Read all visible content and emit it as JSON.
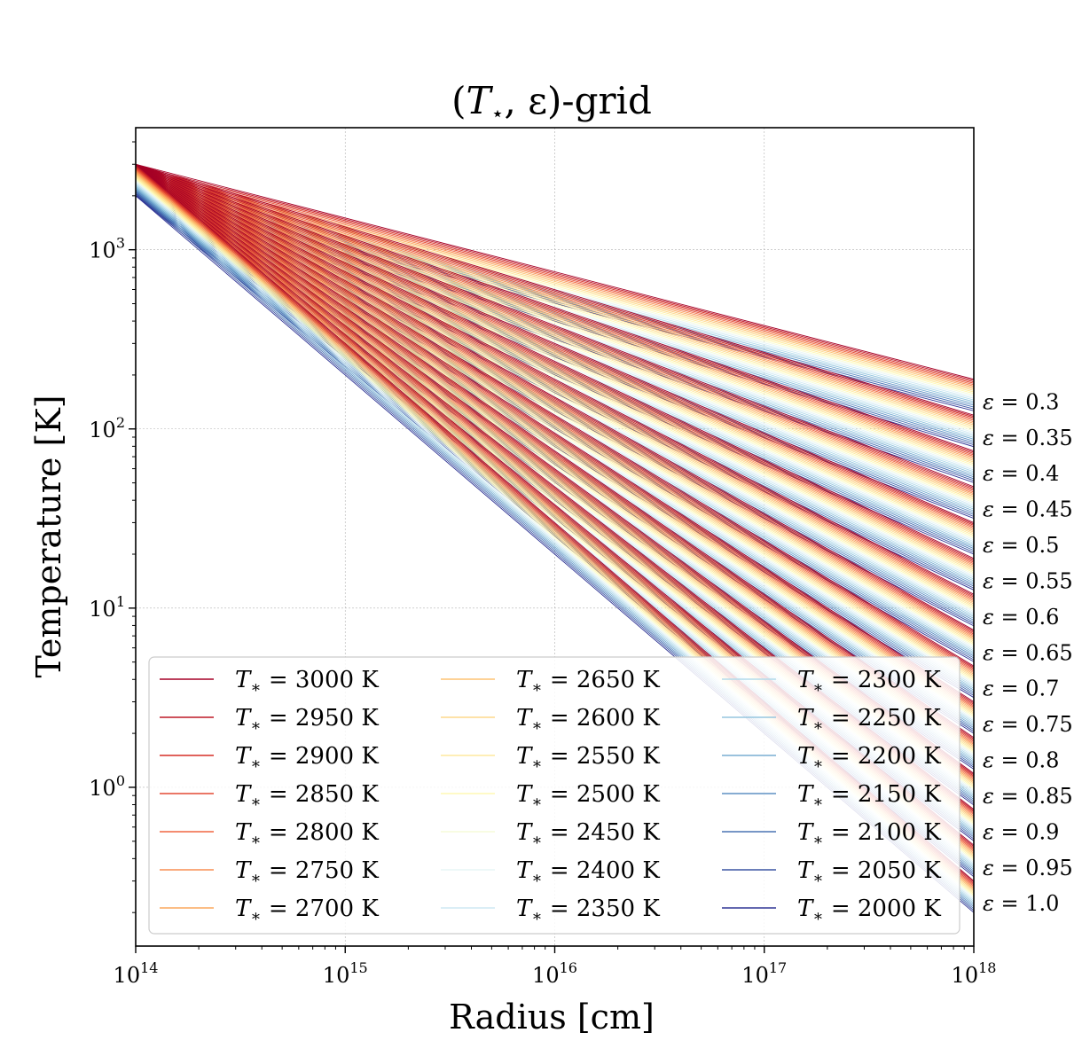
{
  "chart_data": {
    "type": "line",
    "title_parts": [
      "(",
      "T",
      "⋆",
      ", ε)-grid"
    ],
    "title": "(T⋆, ε)-grid",
    "xlabel": "Radius [cm]",
    "ylabel": "Temperature [K]",
    "xscale": "log",
    "yscale": "log",
    "xlim": [
      100000000000000.0,
      1e+18
    ],
    "ylim": [
      0.13,
      4800
    ],
    "grid": true,
    "x_tick_labels": [
      {
        "base": "10",
        "exp": "14",
        "value": 100000000000000.0
      },
      {
        "base": "10",
        "exp": "15",
        "value": 1000000000000000.0
      },
      {
        "base": "10",
        "exp": "16",
        "value": 1e+16
      },
      {
        "base": "10",
        "exp": "17",
        "value": 1e+17
      },
      {
        "base": "10",
        "exp": "18",
        "value": 1e+18
      }
    ],
    "y_tick_labels": [
      {
        "base": "10",
        "exp": "0",
        "value": 1
      },
      {
        "base": "10",
        "exp": "1",
        "value": 10
      },
      {
        "base": "10",
        "exp": "2",
        "value": 100
      },
      {
        "base": "10",
        "exp": "3",
        "value": 1000
      }
    ],
    "model": "T(r) = T* · (r / 1e14 cm)^(-ε)",
    "r0": 100000000000000.0,
    "tstar_series": [
      {
        "name": "T∗ = 3000 K",
        "value": 3000,
        "color": "#a50026"
      },
      {
        "name": "T∗ = 2950 K",
        "value": 2950,
        "color": "#be1827"
      },
      {
        "name": "T∗ = 2900 K",
        "value": 2900,
        "color": "#d62f27"
      },
      {
        "name": "T∗ = 2850 K",
        "value": 2850,
        "color": "#e34a33"
      },
      {
        "name": "T∗ = 2800 K",
        "value": 2800,
        "color": "#f16640"
      },
      {
        "name": "T∗ = 2750 K",
        "value": 2750,
        "color": "#f88d52"
      },
      {
        "name": "T∗ = 2700 K",
        "value": 2700,
        "color": "#fba95f"
      },
      {
        "name": "T∗ = 2650 K",
        "value": 2650,
        "color": "#fdc373"
      },
      {
        "name": "T∗ = 2600 K",
        "value": 2600,
        "color": "#fed98b"
      },
      {
        "name": "T∗ = 2550 K",
        "value": 2550,
        "color": "#fee99d"
      },
      {
        "name": "T∗ = 2500 K",
        "value": 2500,
        "color": "#fff8b4"
      },
      {
        "name": "T∗ = 2450 K",
        "value": 2450,
        "color": "#f6fbd9"
      },
      {
        "name": "T∗ = 2400 K",
        "value": 2400,
        "color": "#e7f5f5"
      },
      {
        "name": "T∗ = 2350 K",
        "value": 2350,
        "color": "#cfe9f3"
      },
      {
        "name": "T∗ = 2300 K",
        "value": 2300,
        "color": "#b3dbeb"
      },
      {
        "name": "T∗ = 2250 K",
        "value": 2250,
        "color": "#96c6df"
      },
      {
        "name": "T∗ = 2200 K",
        "value": 2200,
        "color": "#79aed2"
      },
      {
        "name": "T∗ = 2150 K",
        "value": 2150,
        "color": "#5f91c4"
      },
      {
        "name": "T∗ = 2100 K",
        "value": 2100,
        "color": "#4a74b4"
      },
      {
        "name": "T∗ = 2050 K",
        "value": 2050,
        "color": "#3c55a3"
      },
      {
        "name": "T∗ = 2000 K",
        "value": 2000,
        "color": "#313695"
      }
    ],
    "epsilon_values": [
      0.3,
      0.35,
      0.4,
      0.45,
      0.5,
      0.55,
      0.6,
      0.65,
      0.7,
      0.75,
      0.8,
      0.85,
      0.9,
      0.95,
      1.0
    ],
    "epsilon_labels": [
      "ε = 0.3",
      "ε = 0.35",
      "ε = 0.4",
      "ε = 0.45",
      "ε = 0.5",
      "ε = 0.55",
      "ε = 0.6",
      "ε = 0.65",
      "ε = 0.7",
      "ε = 0.75",
      "ε = 0.8",
      "ε = 0.85",
      "ε = 0.9",
      "ε = 0.95",
      "ε = 1.0"
    ],
    "legend_placement": "lower-left, 3 columns"
  }
}
